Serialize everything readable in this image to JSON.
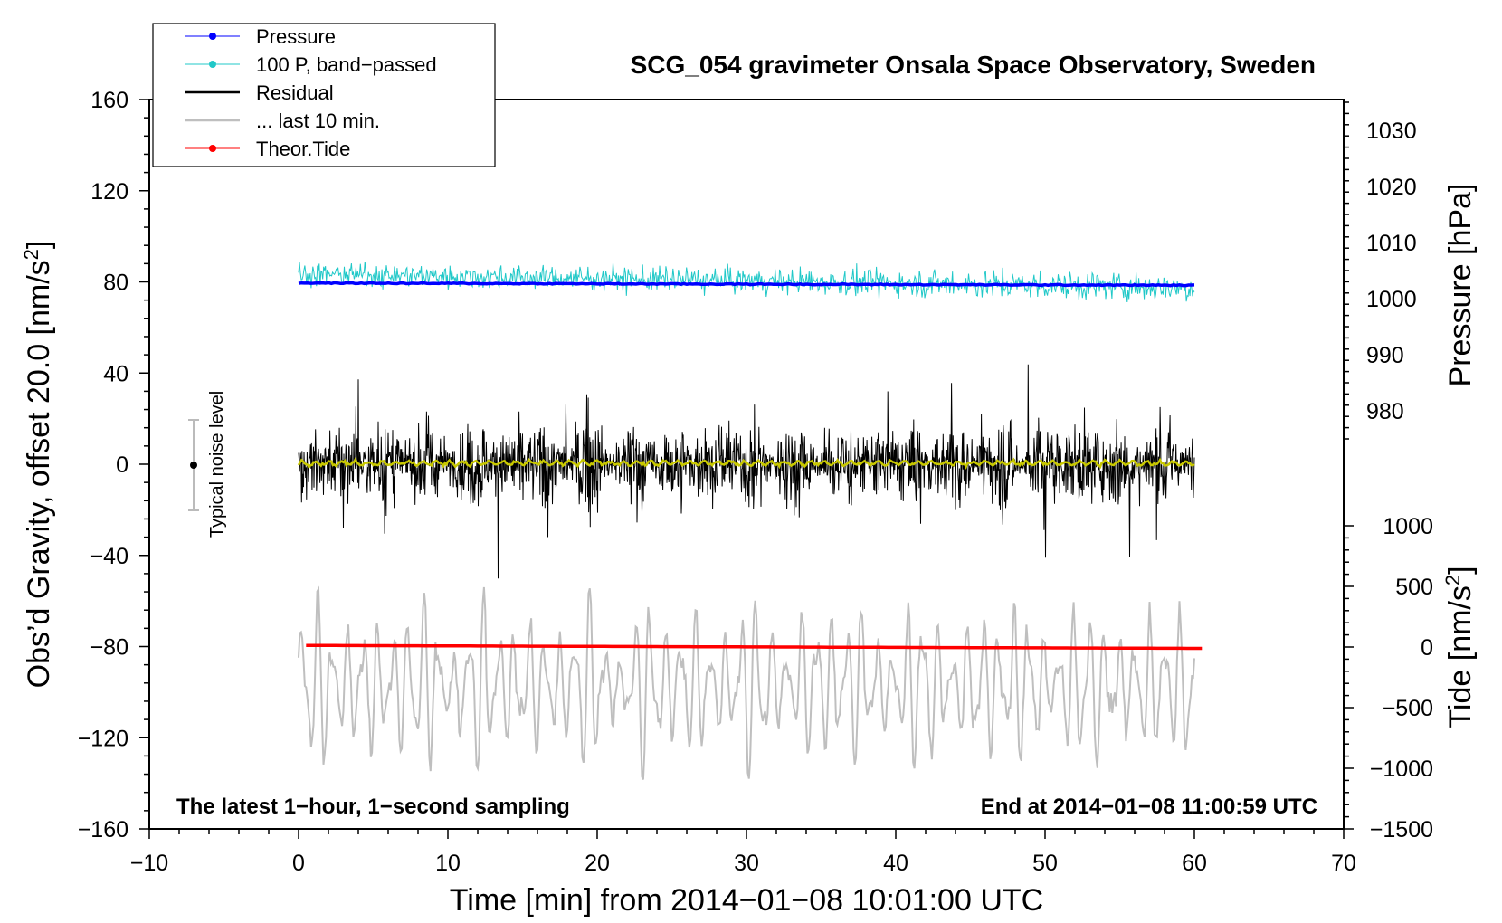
{
  "chart_data": {
    "type": "line",
    "title": "SCG_054 gravimeter Onsala Space Observatory, Sweden",
    "xlabel": "Time [min] from 2014−01−08 10:01:00 UTC",
    "ylabel": "Obs’d Gravity, offset 20.0 [nm/s",
    "ylabel_sup": "2",
    "ylabel_end": "]",
    "xlim": [
      -10,
      70
    ],
    "ylim": [
      -160,
      160
    ],
    "x_ticks": [
      -10,
      0,
      10,
      20,
      30,
      40,
      50,
      60,
      70
    ],
    "x_tick_labels": [
      "−10",
      "0",
      "10",
      "20",
      "30",
      "40",
      "50",
      "60",
      "70"
    ],
    "y_ticks": [
      -160,
      -120,
      -80,
      -40,
      0,
      40,
      80,
      120,
      160
    ],
    "y_tick_labels": [
      "−160",
      "−120",
      "−80",
      "−40",
      "0",
      "40",
      "80",
      "120",
      "160"
    ],
    "pressure_axis": {
      "label": "Pressure [hPa]",
      "ticks": [
        980,
        990,
        1000,
        1010,
        1020,
        1030
      ],
      "tick_labels": [
        "980",
        "990",
        "1000",
        "1010",
        "1020",
        "1030"
      ]
    },
    "tide_axis": {
      "label": "Tide [nm/s",
      "label_sup": "2",
      "label_end": "]",
      "ticks": [
        -1500,
        -1000,
        -500,
        0,
        500,
        1000
      ],
      "tick_labels": [
        "−1500",
        "−1000",
        "−500",
        "0",
        "500",
        "1000"
      ]
    },
    "legend": [
      {
        "label": "Pressure",
        "color": "#0000ff",
        "marker": true
      },
      {
        "label": "100 P, band−passed",
        "color": "#20c8c8",
        "marker": true
      },
      {
        "label": "Residual",
        "color": "#000000",
        "marker": false
      },
      {
        "label": "... last 10 min.",
        "color": "#bfbfbf",
        "marker": false
      },
      {
        "label": "Theor.Tide",
        "color": "#ff0000",
        "marker": true
      }
    ],
    "series": [
      {
        "name": "Pressure",
        "color": "#0000ff",
        "x_range": [
          0,
          60
        ],
        "y_start": 79.5,
        "y_end": 78.5,
        "noise": 0.4
      },
      {
        "name": "100 P, band-passed",
        "color": "#20c8c8",
        "x_range": [
          0,
          60
        ],
        "y_center": 80,
        "amplitude": 5.5
      },
      {
        "name": "Residual",
        "color": "#000000",
        "x_range": [
          0,
          60
        ],
        "y_center": 0,
        "amplitude": 24
      },
      {
        "name": "Residual smoothed",
        "color": "#c8c800",
        "x_range": [
          0,
          60
        ],
        "y_center": 0.5,
        "amplitude": 1.5
      },
      {
        "name": "... last 10 min.",
        "color": "#bfbfbf",
        "x_range": [
          0,
          60
        ],
        "y_center": -97,
        "amplitude": 30
      },
      {
        "name": "Theor.Tide",
        "color": "#ff0000",
        "x_range": [
          0.5,
          60.5
        ],
        "y_start": -79.5,
        "y_end": -80.8
      }
    ],
    "noise_level": {
      "label": "Typical noise level",
      "x": -7,
      "y": 0,
      "half_range": 20
    },
    "annotations": {
      "left": "The latest 1−hour, 1−second sampling",
      "right": "End at 2014−01−08 11:00:59 UTC"
    }
  }
}
